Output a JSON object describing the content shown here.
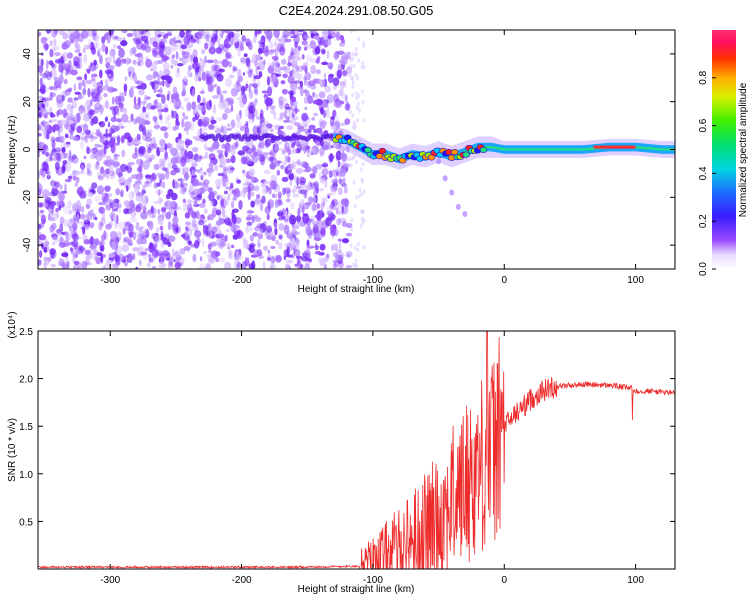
{
  "title": "C2E4.2024.291.08.50.G05",
  "colors": {
    "snr_line": "#ee2b2b",
    "frame": "#000000"
  },
  "chart_data": [
    {
      "type": "heatmap",
      "xlabel": "Height of straight line (km)",
      "ylabel": "Frequency (Hz)",
      "xlim": [
        -355,
        130
      ],
      "ylim": [
        -50,
        50
      ],
      "xticks": [
        -300,
        -200,
        -100,
        0,
        100
      ],
      "yticks": [
        -40,
        -20,
        0,
        20,
        40
      ],
      "noise_region_x": [
        -355,
        -118
      ],
      "signal_trace": {
        "x": [
          -130,
          -120,
          -110,
          -100,
          -90,
          -80,
          -70,
          -60,
          -50,
          -40,
          -30,
          -20,
          -10,
          0,
          20,
          40,
          60,
          80,
          100,
          120,
          130
        ],
        "freq_hz": [
          5,
          4,
          1,
          -2,
          -2,
          -4,
          -2,
          -3,
          -1,
          -3,
          -1,
          1,
          1,
          0,
          0,
          0,
          0,
          1,
          1,
          0,
          0
        ]
      },
      "colorbar": {
        "label": "Normalized spectral amplitude",
        "range": [
          0,
          1
        ],
        "ticks": [
          0.0,
          0.2,
          0.4,
          0.6,
          0.8
        ]
      },
      "grid": false
    },
    {
      "type": "line",
      "xlabel": "Height of straight line (km)",
      "ylabel": "SNR (10 * v/v)",
      "y_multiplier": "(x10⁴)",
      "xlim": [
        -355,
        130
      ],
      "ylim": [
        0,
        2.5
      ],
      "xticks": [
        -300,
        -200,
        -100,
        0,
        100
      ],
      "yticks": [
        0.5,
        1.0,
        1.5,
        2.0,
        2.5
      ],
      "grid": false,
      "series": [
        {
          "x": [
            -355,
            -300,
            -250,
            -200,
            -150,
            -110,
            -100,
            -90,
            -80,
            -70,
            -60,
            -50,
            -40,
            -30,
            -20,
            -15,
            -10,
            0,
            10,
            20,
            30,
            40,
            60,
            80,
            97,
            100,
            110,
            130
          ],
          "y": [
            0.02,
            0.02,
            0.02,
            0.02,
            0.02,
            0.03,
            0.08,
            0.15,
            0.22,
            0.32,
            0.42,
            0.55,
            0.72,
            0.9,
            1.05,
            1.15,
            1.2,
            1.5,
            1.65,
            1.78,
            1.88,
            1.92,
            1.94,
            1.93,
            1.9,
            1.87,
            1.87,
            1.85
          ]
        }
      ]
    }
  ]
}
